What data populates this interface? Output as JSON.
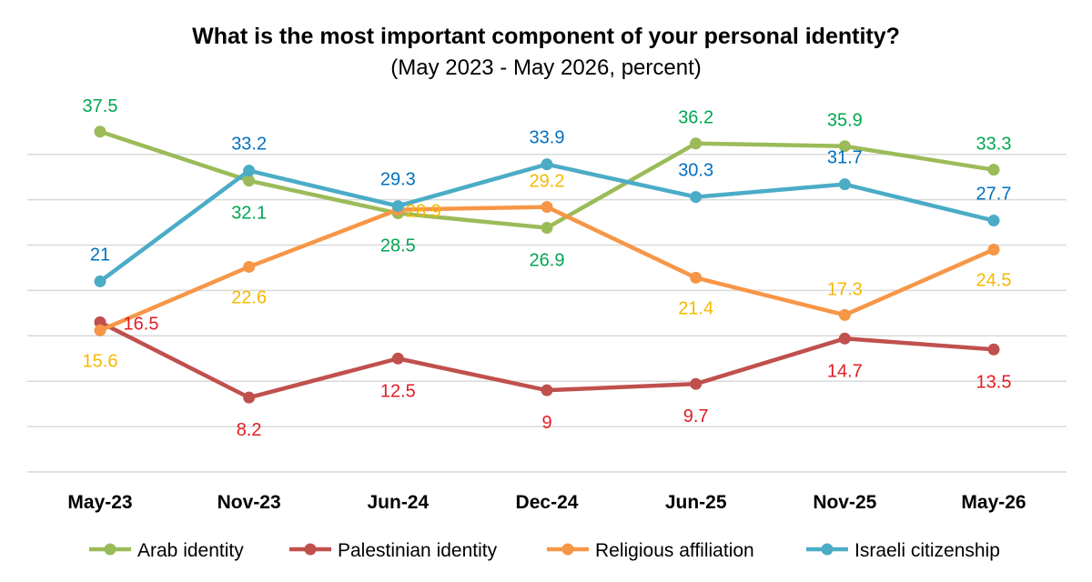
{
  "chart_data": {
    "type": "line",
    "title": "What is the most important component of your personal identity?",
    "subtitle": "(May 2023 - May 2026, percent)",
    "categories": [
      "May-23",
      "Nov-23",
      "Jun-24",
      "Dec-24",
      "Jun-25",
      "Nov-25",
      "May-26"
    ],
    "xlabel": "",
    "ylabel": "",
    "ylim": [
      0,
      50
    ],
    "grid": true,
    "legend_position": "bottom",
    "series": [
      {
        "name": "Arab identity",
        "color": "#9bbb59",
        "label_color": "#00a651",
        "values": [
          37.5,
          32.1,
          28.5,
          26.9,
          36.2,
          35.9,
          33.3
        ],
        "labels": [
          "37.5",
          "32.1",
          "28.5",
          "26.9",
          "36.2",
          "35.9",
          "33.3"
        ]
      },
      {
        "name": "Palestinian identity",
        "color": "#c0504d",
        "label_color": "#e31c23",
        "values": [
          16.5,
          8.2,
          12.5,
          9,
          9.7,
          14.7,
          13.5
        ],
        "labels": [
          "16.5",
          "8.2",
          "12.5",
          "9",
          "9.7",
          "14.7",
          "13.5"
        ]
      },
      {
        "name": "Religious affiliation",
        "color": "#f79646",
        "label_color": "#f5b800",
        "values": [
          15.6,
          22.6,
          28.9,
          29.2,
          21.4,
          17.3,
          24.5
        ],
        "labels": [
          "15.6",
          "22.6",
          "28.9",
          "29.2",
          "21.4",
          "17.3",
          "24.5"
        ]
      },
      {
        "name": "Israeli citizenship",
        "color": "#4bacc6",
        "label_color": "#0070c0",
        "values": [
          21,
          33.2,
          29.3,
          33.9,
          30.3,
          31.7,
          27.7
        ],
        "labels": [
          "21",
          "33.2",
          "29.3",
          "33.9",
          "30.3",
          "31.7",
          "27.7"
        ]
      }
    ]
  }
}
